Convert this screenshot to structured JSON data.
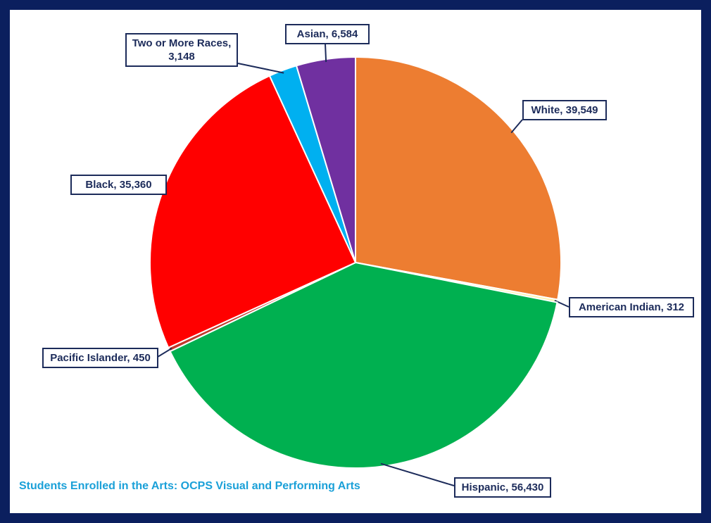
{
  "chart_data": {
    "type": "pie",
    "title": "Students Enrolled in the Arts: OCPS Visual and Performing Arts",
    "values": [
      39549,
      312,
      56430,
      450,
      35360,
      3148,
      6584
    ],
    "value_labels": [
      "White, 39,549",
      "American Indian, 312",
      "Hispanic, 56,430",
      "Pacific Islander, 450",
      "Black, 35,360",
      "Two or More Races, 3,148",
      "Asian, 6,584"
    ],
    "colors": [
      "#ed7d31",
      "#fff2a8",
      "#00b050",
      "#c0392b",
      "#ff0000",
      "#00b0f0",
      "#7030a0"
    ]
  }
}
